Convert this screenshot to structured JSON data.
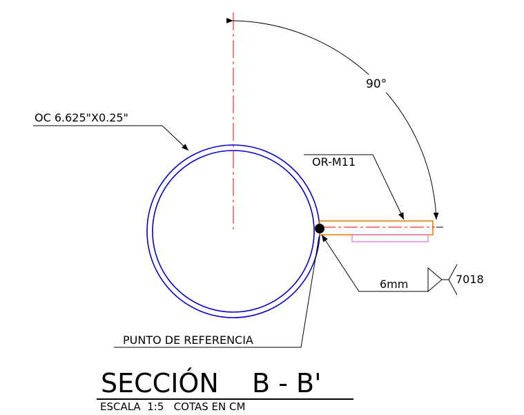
{
  "angle_label": "90°",
  "pipe_label": "OC 6.625\"X0.25\"",
  "plate_label": "OR-M11",
  "weld_size": "6mm",
  "electrode": "7018",
  "reference_label": "PUNTO DE REFERENCIA",
  "title": "SECCIÓN    B - B'",
  "subtitle": "ESCALA  1:5   COTAS EN CM"
}
